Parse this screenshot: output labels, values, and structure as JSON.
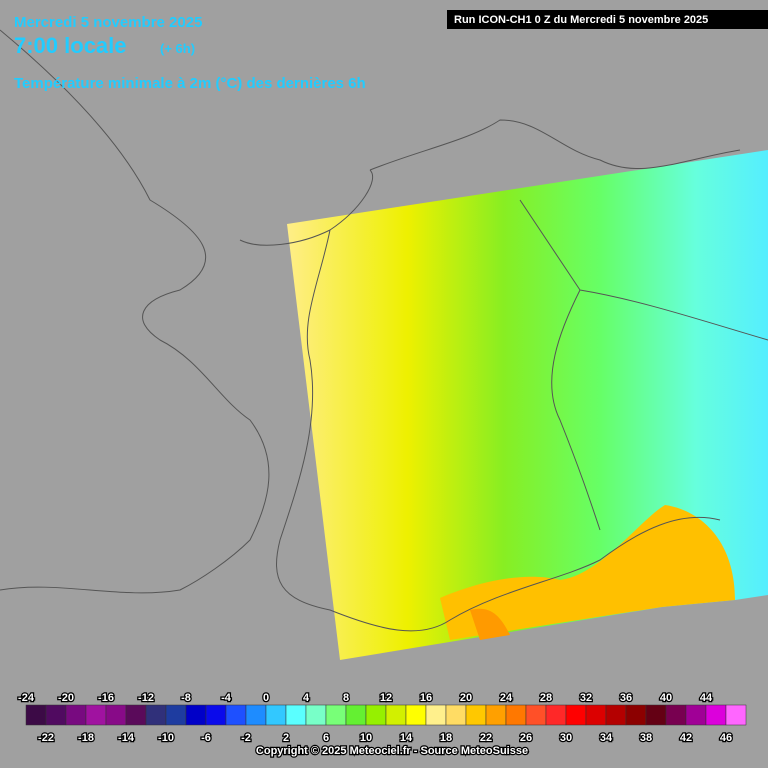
{
  "header": {
    "date": "Mercredi 5 novembre 2025",
    "time": "7:00 locale",
    "offset": "(+ 6h)",
    "parameter": "Température minimale à 2m (°C) des dernières 6h",
    "run": "Run ICON-CH1 0 Z du Mercredi 5 novembre 2025"
  },
  "legend": {
    "ticks": [
      -24,
      -22,
      -20,
      -18,
      -16,
      -14,
      -12,
      -10,
      -8,
      -6,
      -4,
      -2,
      0,
      2,
      4,
      6,
      8,
      10,
      12,
      14,
      16,
      18,
      20,
      22,
      24,
      26,
      28,
      30,
      32,
      34,
      36,
      38,
      40,
      42,
      44,
      46
    ],
    "colors": [
      "#3c0a46",
      "#500a60",
      "#780a80",
      "#a012a0",
      "#880a88",
      "#5a0a5a",
      "#30307a",
      "#1e3ca0",
      "#0000c8",
      "#0a0aeb",
      "#1e50ff",
      "#1e8cff",
      "#32c8ff",
      "#5affff",
      "#78ffc8",
      "#78ff78",
      "#64f032",
      "#96f000",
      "#d2f000",
      "#ffff00",
      "#fff08c",
      "#ffdc64",
      "#ffc800",
      "#ffa000",
      "#ff7800",
      "#ff5028",
      "#ff2828",
      "#ff0000",
      "#dc0000",
      "#b40000",
      "#8c0000",
      "#640014",
      "#780050",
      "#a00096",
      "#dc00dc",
      "#ff66ff"
    ]
  },
  "footer": {
    "copyright": "Copyright © 2025 Meteociel.fr - Source MeteoSuisse"
  }
}
